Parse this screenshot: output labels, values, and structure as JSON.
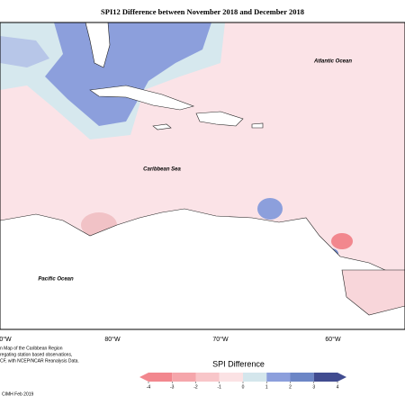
{
  "title": "SPI12 Difference between November 2018 and December 2018",
  "places": [
    "Atlantic Ocean",
    "Caribbean Sea",
    "Pacific Ocean"
  ],
  "longitudes": [
    "0°W",
    "80°W",
    "70°W",
    "60°W"
  ],
  "footnote": [
    "n Map of the Caribbean Region",
    "regating station based observations,",
    "CF, with NCEP/NCAR Reanalysis Data."
  ],
  "credit": "CIMH Feb 2019",
  "legend": {
    "title": "SPI Difference",
    "ticks": [
      -4,
      -3,
      -2,
      -1,
      0,
      1,
      2,
      3,
      4
    ],
    "colors": [
      "#f2878e",
      "#f5a6ab",
      "#f8c6c9",
      "#fbe2e4",
      "#d4e6ec",
      "#8c9fdc",
      "#6c86c6",
      "#414c90"
    ]
  }
}
